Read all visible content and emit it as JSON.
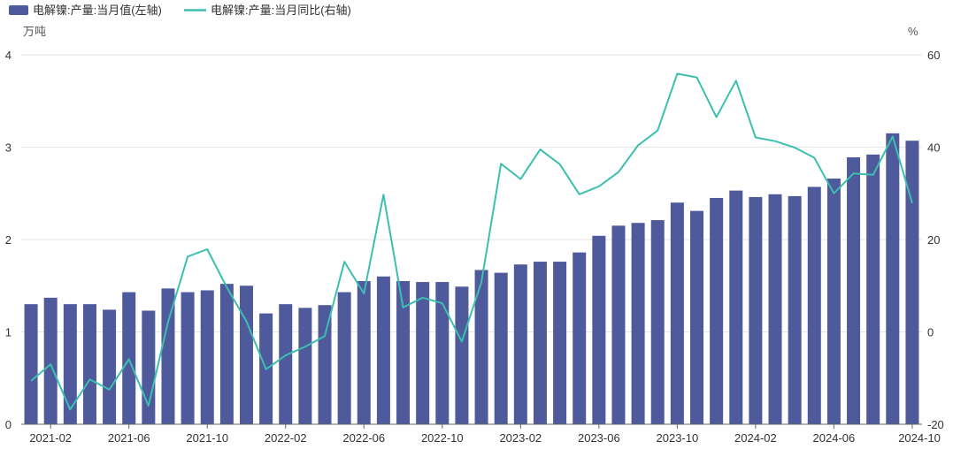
{
  "legend": {
    "bar_label": "电解镍:产量:当月值(左轴)",
    "line_label": "电解镍:产量:当月同比(右轴)"
  },
  "colors": {
    "bar": "#4e5a9b",
    "line": "#3dbfb0",
    "grid": "#e6e6e6",
    "axis": "#666666"
  },
  "chart_data": {
    "type": "bar",
    "left_unit": "万吨",
    "right_unit": "%",
    "ylim_left": [
      0,
      4
    ],
    "ylim_right": [
      -20,
      60
    ],
    "left_ticks": [
      "0",
      "1",
      "2",
      "3",
      "4"
    ],
    "right_ticks": [
      "-20",
      "0",
      "20",
      "40",
      "60"
    ],
    "grid": true,
    "legend_position": "top-left",
    "x_tick_labels": [
      "2021-02",
      "2021-06",
      "2021-10",
      "2022-02",
      "2022-06",
      "2022-10",
      "2023-02",
      "2023-06",
      "2023-10",
      "2024-02",
      "2024-06",
      "2024-10"
    ],
    "x": [
      "2021-01",
      "2021-02",
      "2021-03",
      "2021-04",
      "2021-05",
      "2021-06",
      "2021-07",
      "2021-08",
      "2021-09",
      "2021-10",
      "2021-11",
      "2021-12",
      "2022-01",
      "2022-02",
      "2022-03",
      "2022-04",
      "2022-05",
      "2022-06",
      "2022-07",
      "2022-08",
      "2022-09",
      "2022-10",
      "2022-11",
      "2022-12",
      "2023-01",
      "2023-02",
      "2023-03",
      "2023-04",
      "2023-05",
      "2023-06",
      "2023-07",
      "2023-08",
      "2023-09",
      "2023-10",
      "2023-11",
      "2023-12",
      "2024-01",
      "2024-02",
      "2024-03",
      "2024-04",
      "2024-05",
      "2024-06",
      "2024-07",
      "2024-08",
      "2024-09",
      "2024-10"
    ],
    "series": [
      {
        "name": "电解镍:产量:当月值(左轴)",
        "type": "bar",
        "axis": "left",
        "values": [
          1.3,
          1.37,
          1.3,
          1.3,
          1.24,
          1.43,
          1.23,
          1.47,
          1.43,
          1.45,
          1.52,
          1.5,
          1.2,
          1.3,
          1.26,
          1.29,
          1.43,
          1.55,
          1.6,
          1.55,
          1.54,
          1.54,
          1.49,
          1.67,
          1.64,
          1.73,
          1.76,
          1.76,
          1.86,
          2.04,
          2.15,
          2.18,
          2.21,
          2.4,
          2.31,
          2.45,
          2.53,
          2.46,
          2.49,
          2.47,
          2.57,
          2.66,
          2.89,
          2.92,
          3.15,
          3.07
        ]
      },
      {
        "name": "电解镍:产量:当月同比(右轴)",
        "type": "line",
        "axis": "right",
        "values": [
          -10.6,
          -7.0,
          -16.8,
          -10.3,
          -12.5,
          -5.9,
          -16.0,
          2.2,
          16.3,
          17.9,
          9.6,
          2.3,
          -8.1,
          -5.1,
          -3.2,
          -0.9,
          15.2,
          8.3,
          29.7,
          5.3,
          7.4,
          6.2,
          -2.1,
          10.8,
          36.4,
          33.1,
          39.5,
          36.3,
          29.8,
          31.5,
          34.6,
          40.4,
          43.6,
          55.9,
          55.1,
          46.5,
          54.4,
          42.1,
          41.3,
          39.9,
          37.7,
          30.0,
          34.3,
          34.0,
          42.3,
          27.9
        ]
      }
    ]
  }
}
